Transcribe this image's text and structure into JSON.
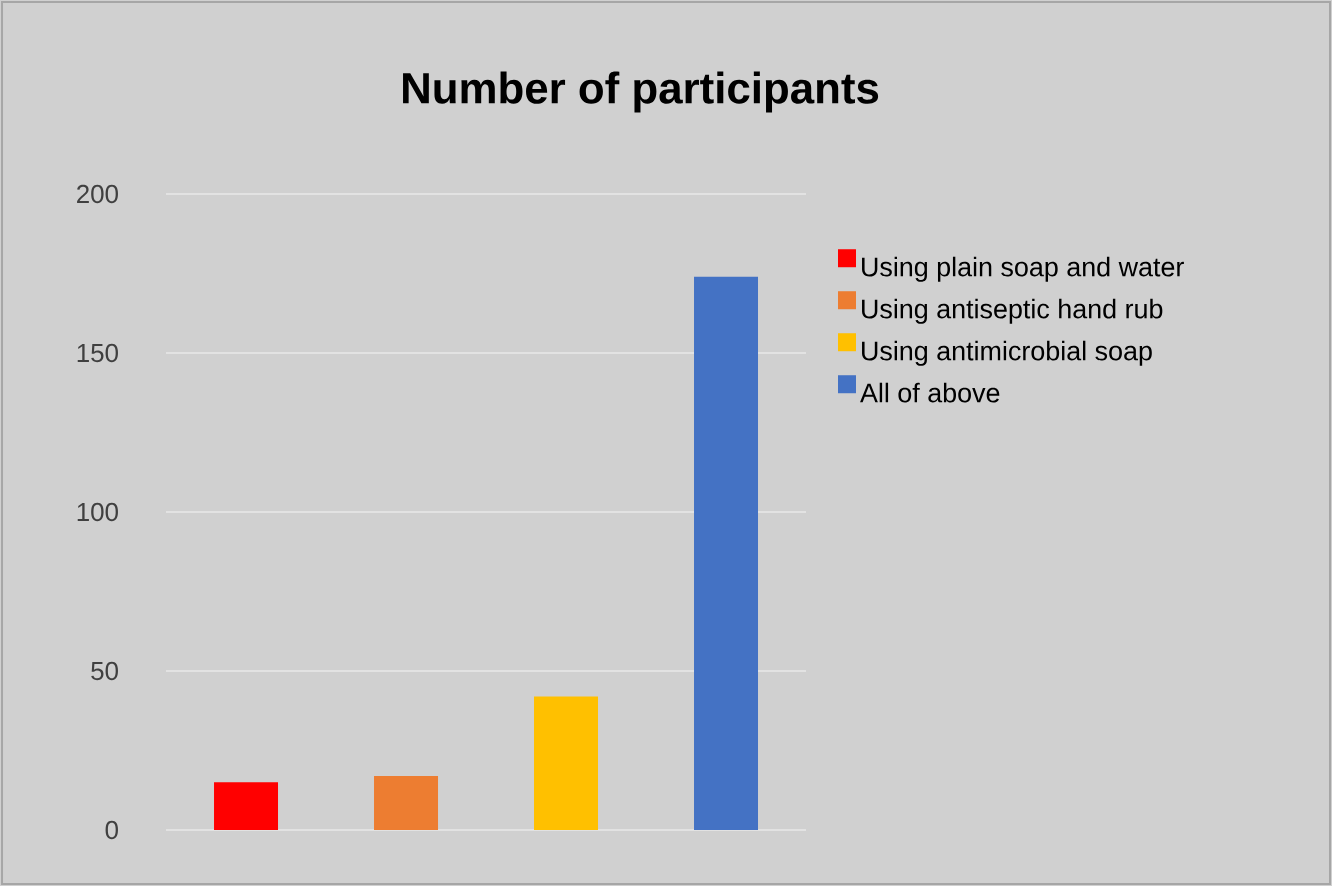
{
  "chart_data": {
    "type": "bar",
    "title": "Number of participants",
    "categories": [
      null,
      null,
      null,
      null
    ],
    "series": [
      {
        "name": "Using plain soap and water",
        "color": "#ff0000",
        "values": [
          15,
          null,
          null,
          null
        ]
      },
      {
        "name": "Using antiseptic hand rub",
        "color": "#ed7d31",
        "values": [
          null,
          17,
          null,
          null
        ]
      },
      {
        "name": "Using antimicrobial soap",
        "color": "#ffc000",
        "values": [
          null,
          null,
          42,
          null
        ]
      },
      {
        "name": "All of above",
        "color": "#4472c4",
        "values": [
          null,
          null,
          null,
          174
        ]
      }
    ],
    "ylim": [
      0,
      200
    ],
    "yticks": [
      0,
      50,
      100,
      150,
      200
    ],
    "grid": "y",
    "legend": "right"
  }
}
